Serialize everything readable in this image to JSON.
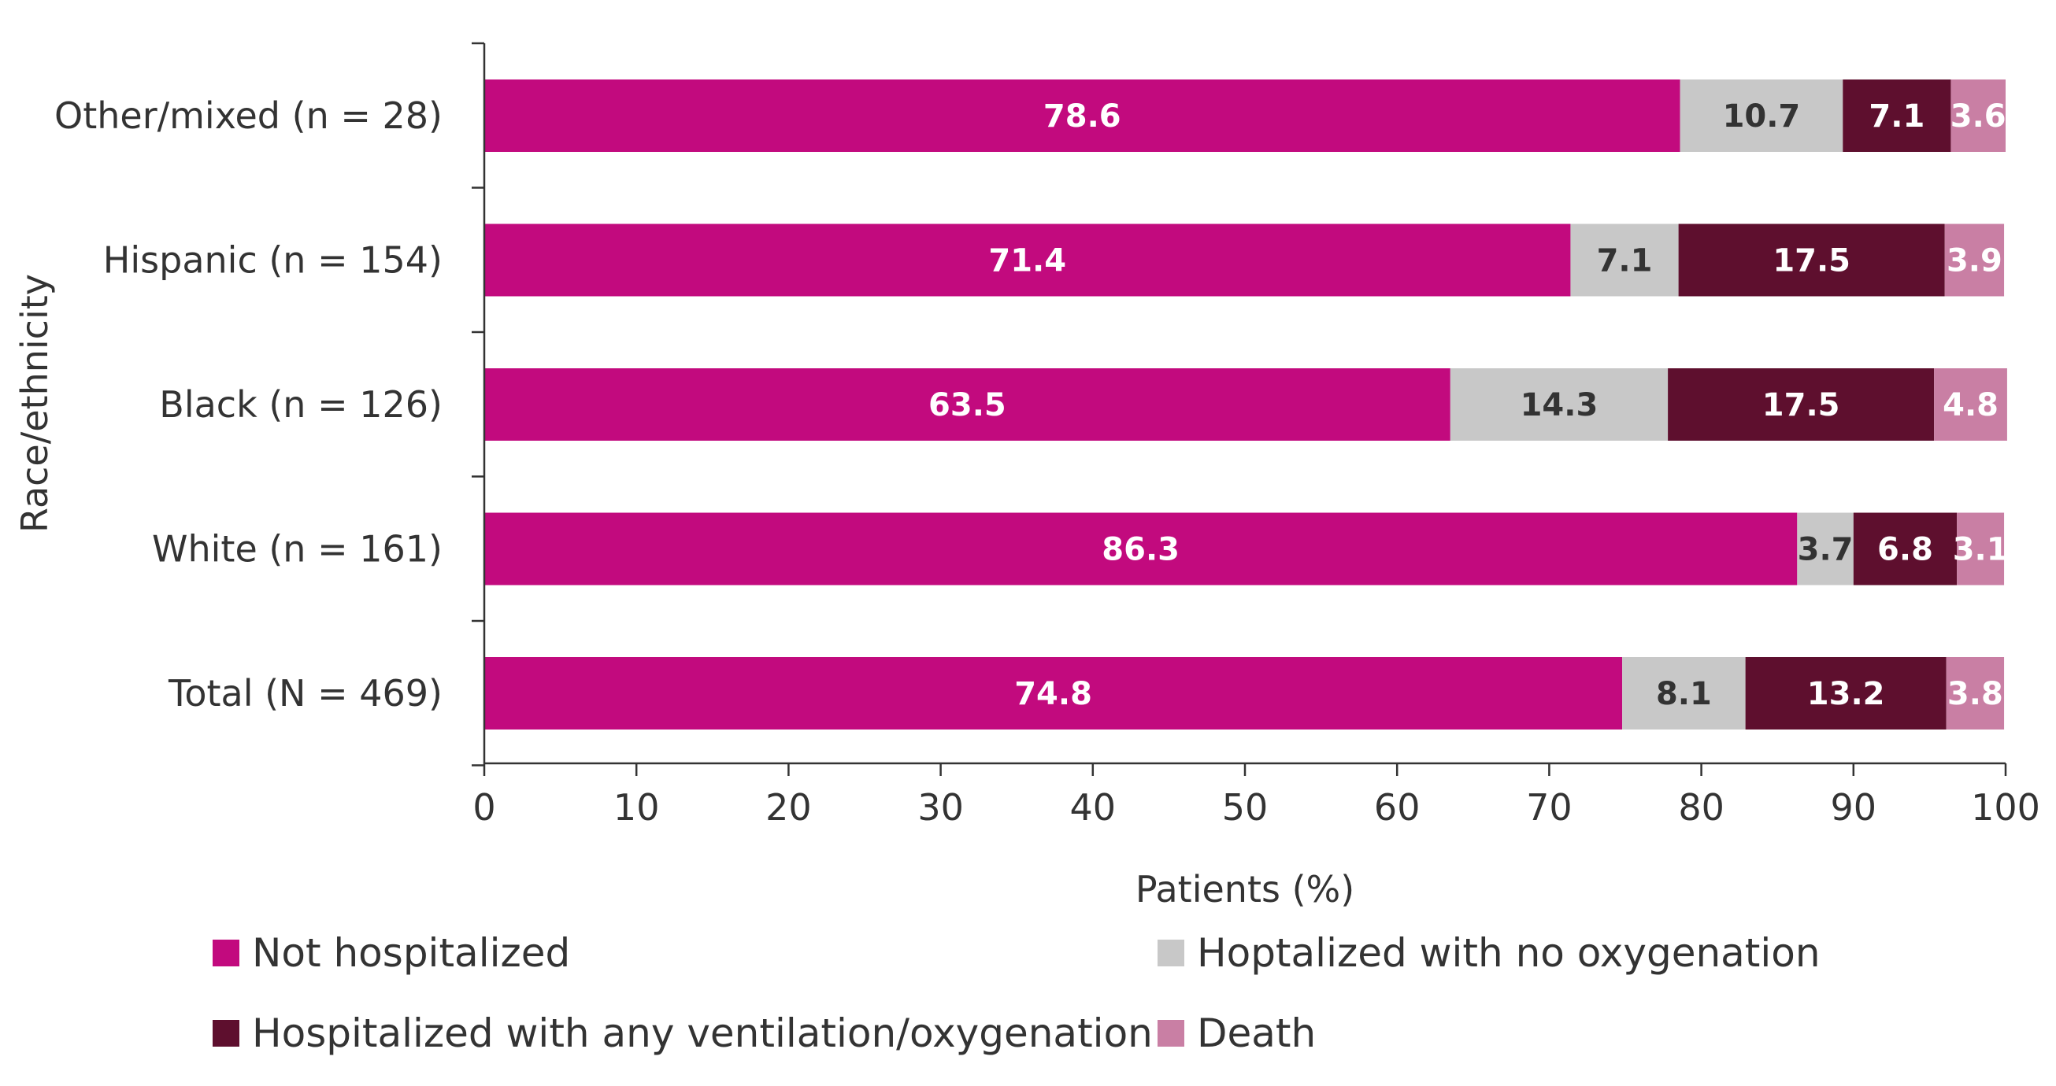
{
  "chart_data": {
    "type": "bar",
    "orientation": "horizontal",
    "stacked": true,
    "title": "",
    "xlabel": "Patients (%)",
    "ylabel": "Race/ethnicity",
    "xlim": [
      0,
      100
    ],
    "xticks": [
      0,
      10,
      20,
      30,
      40,
      50,
      60,
      70,
      80,
      90,
      100
    ],
    "grid": false,
    "legend_position": "bottom",
    "categories": [
      "Other/mixed (n = 28)",
      "Hispanic (n = 154)",
      "Black (n = 126)",
      "White (n = 161)",
      "Total (N = 469)"
    ],
    "series": [
      {
        "name": "Not hospitalized",
        "color": "#c20a7e",
        "label_color": "#ffffff",
        "values": [
          78.6,
          71.4,
          63.5,
          86.3,
          74.8
        ]
      },
      {
        "name": "Hoptalized with no oxygenation",
        "color": "#c8c8c8",
        "label_color": "#333333",
        "values": [
          10.7,
          7.1,
          14.3,
          3.7,
          8.1
        ]
      },
      {
        "name": "Hospitalized with any ventilation/oxygenation",
        "color": "#5e0f2e",
        "label_color": "#ffffff",
        "values": [
          7.1,
          17.5,
          17.5,
          6.8,
          13.2
        ]
      },
      {
        "name": "Death",
        "color": "#c97fa4",
        "label_color": "#ffffff",
        "values": [
          3.6,
          3.9,
          4.8,
          3.1,
          3.8
        ]
      }
    ]
  }
}
